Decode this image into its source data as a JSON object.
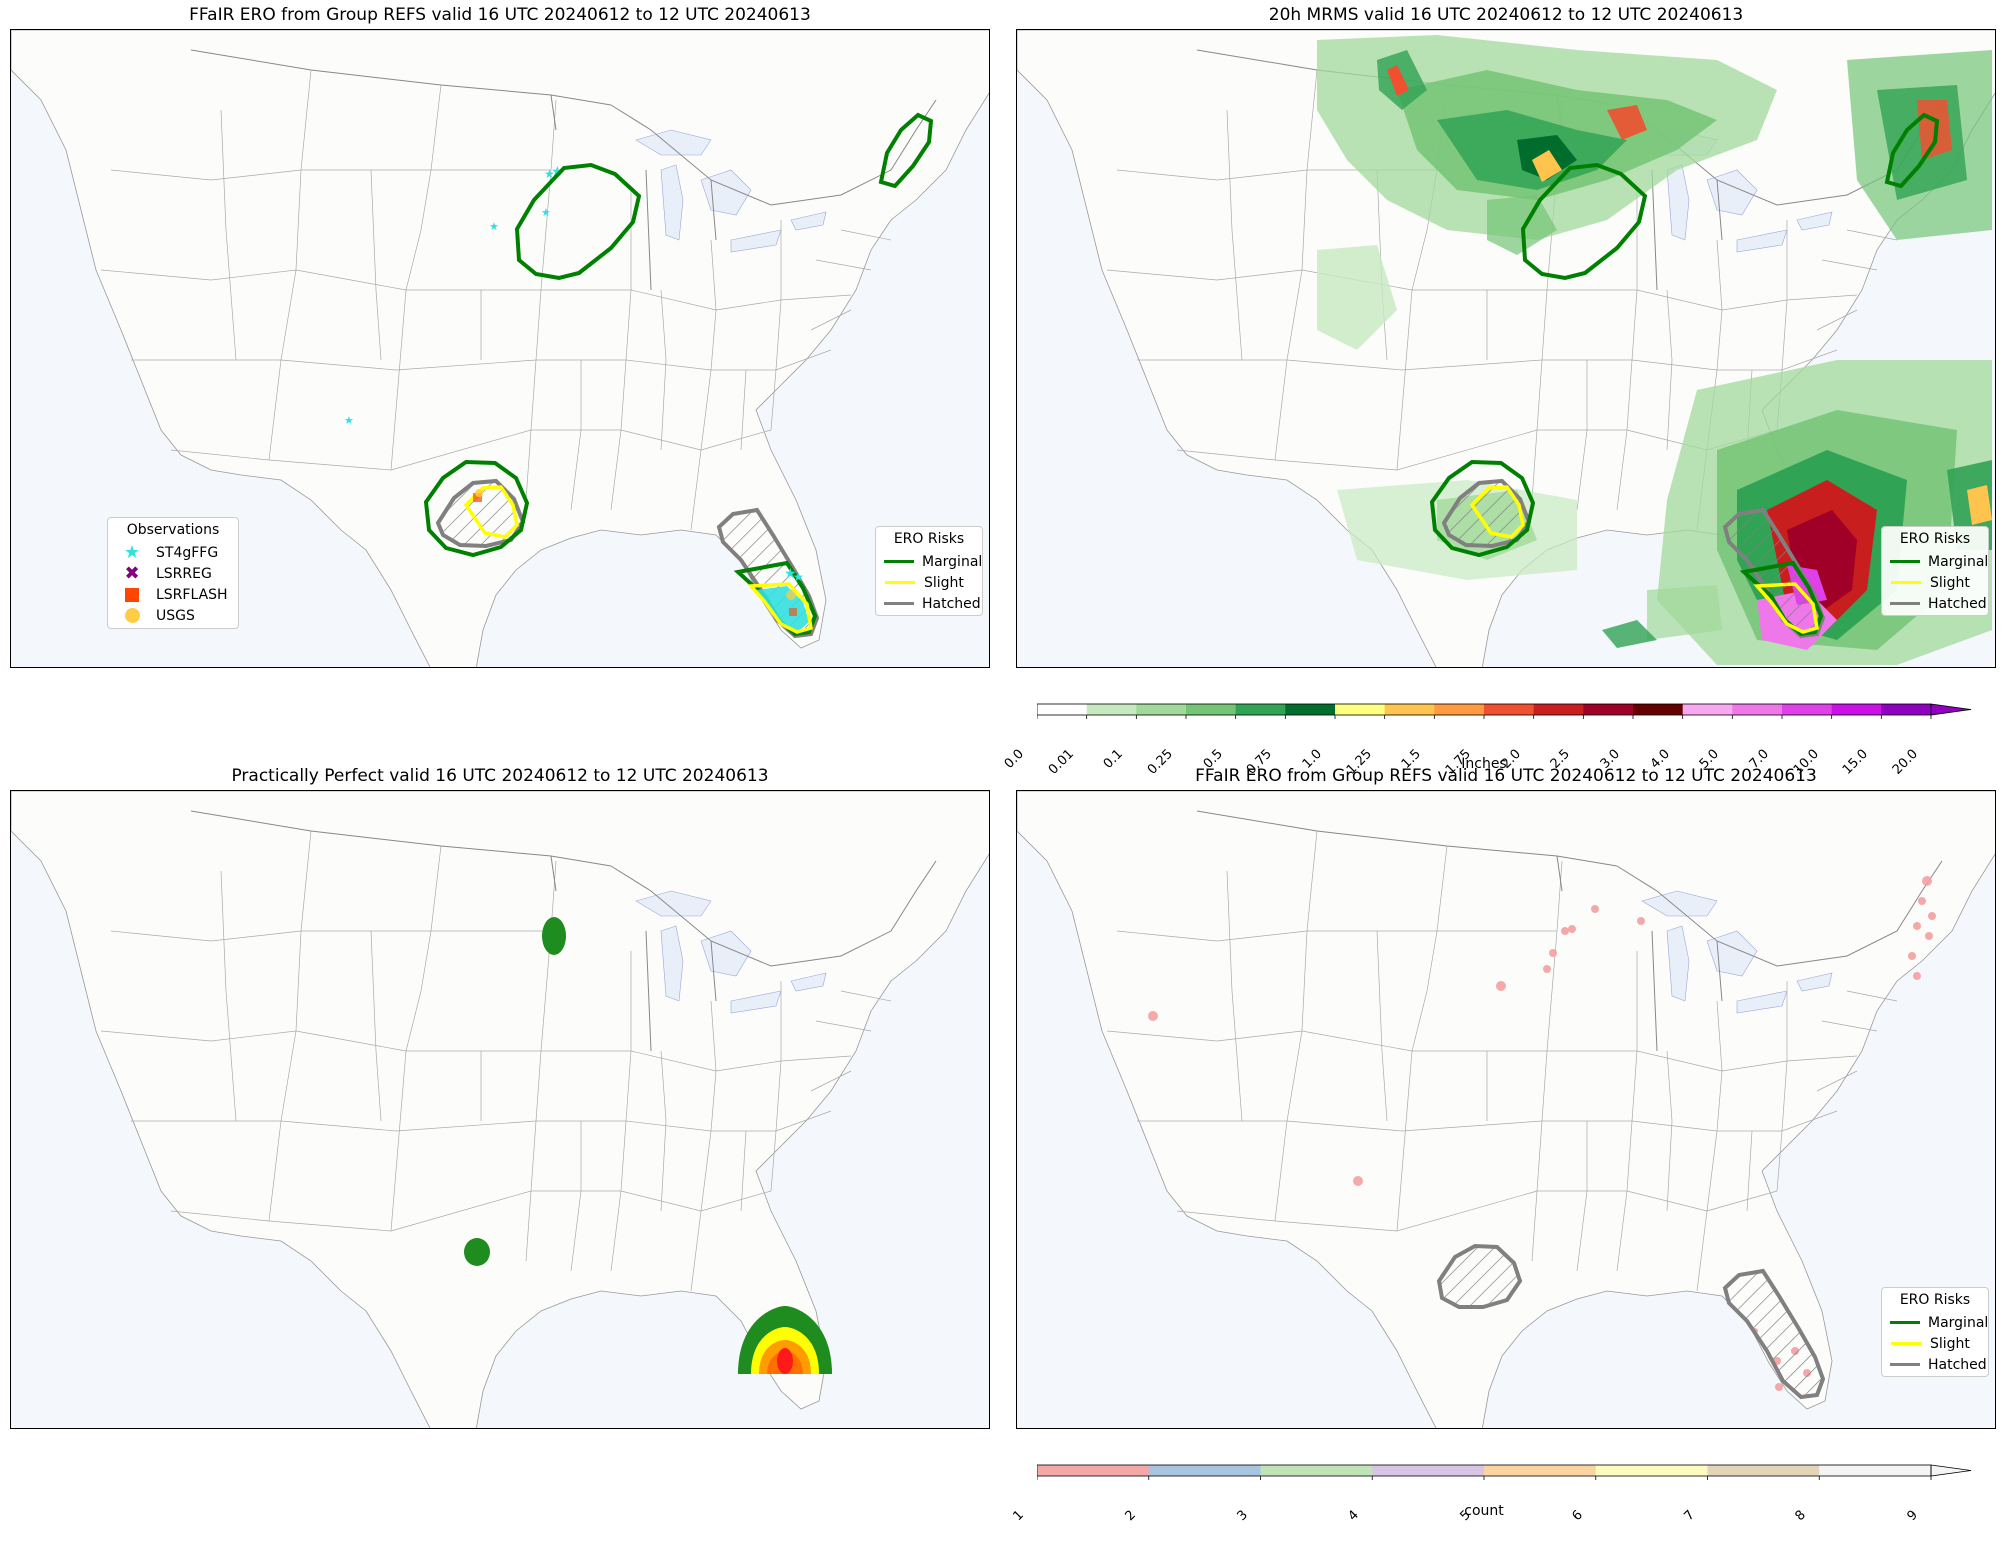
{
  "colors": {
    "land": "#fcfcfb",
    "water": "#f4f7fc",
    "lake": "#e9eff9",
    "state_line": "#aaaaaa",
    "border_line": "#888888",
    "marginal": "#008000",
    "slight": "#ffff00",
    "hatched": "#808080",
    "st4gffg": "#33e0e0",
    "lsrreg": "#800080",
    "lsrflash": "#ff4500",
    "usgs": "#ffcc44",
    "count_point": "#f4a0a0"
  },
  "panels": [
    {
      "id": "tl",
      "title": "FFaIR ERO from Group REFS valid 16 UTC 20240612 to 12 UTC 20240613"
    },
    {
      "id": "tr",
      "title": "20h MRMS valid 16 UTC 20240612 to 12 UTC 20240613"
    },
    {
      "id": "bl",
      "title": "Practically Perfect valid 16 UTC 20240612 to 12 UTC 20240613"
    },
    {
      "id": "br",
      "title": "FFaIR ERO from Group REFS valid 16 UTC 20240612 to 12 UTC 20240613"
    }
  ],
  "observations_legend": {
    "title": "Observations",
    "items": [
      {
        "label": "ST4gFFG",
        "marker": "star-icon",
        "color": "#33e0e0"
      },
      {
        "label": "LSRREG",
        "marker": "x-marker-icon",
        "color": "#800080"
      },
      {
        "label": "LSRFLASH",
        "marker": "square-marker-icon",
        "color": "#ff4500"
      },
      {
        "label": "USGS",
        "marker": "circle-marker-icon",
        "color": "#ffcc44"
      }
    ]
  },
  "ero_legend": {
    "title": "ERO Risks",
    "items": [
      {
        "label": "Marginal",
        "color": "#008000"
      },
      {
        "label": "Slight",
        "color": "#ffff00"
      },
      {
        "label": "Hatched",
        "color": "#808080"
      }
    ]
  },
  "precip_colorbar": {
    "label": "Inches",
    "ticks": [
      "0.0",
      "0.01",
      "0.1",
      "0.25",
      "0.5",
      "0.75",
      "1.0",
      "1.25",
      "1.5",
      "1.75",
      "2.0",
      "2.5",
      "3.0",
      "4.0",
      "5.0",
      "7.0",
      "10.0",
      "15.0",
      "20.0"
    ],
    "colors": [
      "#ffffff",
      "#c7e9c0",
      "#a1d99b",
      "#74c476",
      "#31a354",
      "#006d2c",
      "#ffff80",
      "#ffc44d",
      "#ff9a40",
      "#f05030",
      "#c81e1e",
      "#a00028",
      "#640000",
      "#f7a8f0",
      "#ee78ea",
      "#e040e8",
      "#cc10e8",
      "#9000c0"
    ],
    "extend": "max"
  },
  "count_colorbar": {
    "label": "count",
    "ticks": [
      "1",
      "2",
      "3",
      "4",
      "5",
      "6",
      "7",
      "8",
      "9"
    ],
    "colors": [
      "#f4a8a8",
      "#a8c4e0",
      "#c0e4b8",
      "#d8c4e4",
      "#fcd4a0",
      "#fcfcc0",
      "#e4d4b8",
      "#f4f4f4"
    ],
    "extend": "max"
  },
  "chart_data": {
    "type": "map",
    "region": "Contiguous United States",
    "valid_period": "16 UTC 20240612 to 12 UTC 20240613",
    "ero_areas": [
      {
        "risk": "Marginal",
        "region": "Minnesota / Wisconsin"
      },
      {
        "risk": "Marginal",
        "region": "Maine"
      },
      {
        "risk": "Marginal",
        "region": "Central Texas"
      },
      {
        "risk": "Slight",
        "region": "Central Texas"
      },
      {
        "risk": "Hatched",
        "region": "Central Texas"
      },
      {
        "risk": "Marginal",
        "region": "South Florida"
      },
      {
        "risk": "Slight",
        "region": "South Florida"
      },
      {
        "risk": "Hatched",
        "region": "Florida"
      }
    ],
    "practically_perfect": [
      {
        "region": "Minnesota",
        "levels": [
          "Marginal"
        ]
      },
      {
        "region": "Central Texas",
        "levels": [
          "Marginal"
        ]
      },
      {
        "region": "South Florida",
        "levels": [
          "Marginal",
          "Slight",
          "Moderate",
          "High"
        ]
      }
    ]
  }
}
